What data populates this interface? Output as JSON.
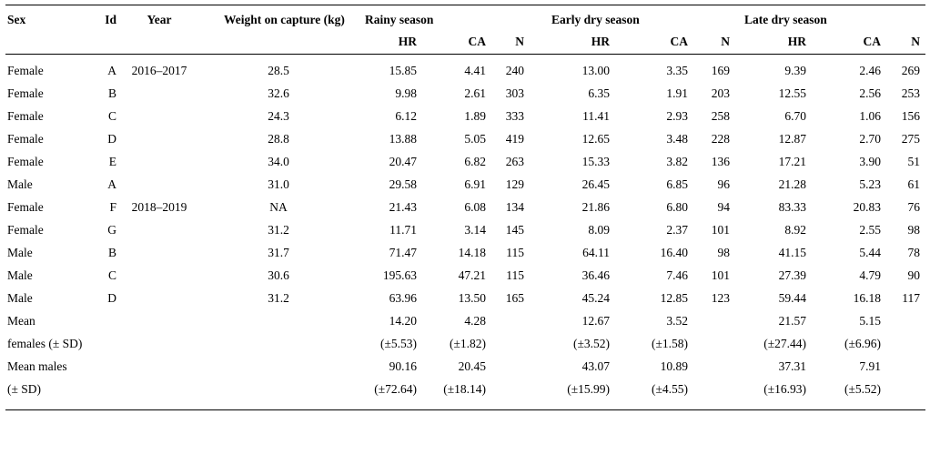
{
  "table": {
    "columns": {
      "sex": "Sex",
      "id": "Id",
      "year": "Year",
      "weight": "Weight on capture (kg)"
    },
    "groups": [
      "Rainy season",
      "Early dry season",
      "Late dry season"
    ],
    "subheaders": [
      "HR",
      "CA",
      "N"
    ],
    "rows": [
      [
        "Female",
        "A",
        "2016–2017",
        "28.5",
        "15.85",
        "4.41",
        "240",
        "13.00",
        "3.35",
        "169",
        "9.39",
        "2.46",
        "269"
      ],
      [
        "Female",
        "B",
        "",
        "32.6",
        "9.98",
        "2.61",
        "303",
        "6.35",
        "1.91",
        "203",
        "12.55",
        "2.56",
        "253"
      ],
      [
        "Female",
        "C",
        "",
        "24.3",
        "6.12",
        "1.89",
        "333",
        "11.41",
        "2.93",
        "258",
        "6.70",
        "1.06",
        "156"
      ],
      [
        "Female",
        "D",
        "",
        "28.8",
        "13.88",
        "5.05",
        "419",
        "12.65",
        "3.48",
        "228",
        "12.87",
        "2.70",
        "275"
      ],
      [
        "Female",
        "E",
        "",
        "34.0",
        "20.47",
        "6.82",
        "263",
        "15.33",
        "3.82",
        "136",
        "17.21",
        "3.90",
        "51"
      ],
      [
        "Male",
        "A",
        "",
        "31.0",
        "29.58",
        "6.91",
        "129",
        "26.45",
        "6.85",
        "96",
        "21.28",
        "5.23",
        "61"
      ],
      [
        "Female",
        "F",
        "2018–2019",
        "NA",
        "21.43",
        "6.08",
        "134",
        "21.86",
        "6.80",
        "94",
        "83.33",
        "20.83",
        "76"
      ],
      [
        "Female",
        "G",
        "",
        "31.2",
        "11.71",
        "3.14",
        "145",
        "8.09",
        "2.37",
        "101",
        "8.92",
        "2.55",
        "98"
      ],
      [
        "Male",
        "B",
        "",
        "31.7",
        "71.47",
        "14.18",
        "115",
        "64.11",
        "16.40",
        "98",
        "41.15",
        "5.44",
        "78"
      ],
      [
        "Male",
        "C",
        "",
        "30.6",
        "195.63",
        "47.21",
        "115",
        "36.46",
        "7.46",
        "101",
        "27.39",
        "4.79",
        "90"
      ],
      [
        "Male",
        "D",
        "",
        "31.2",
        "63.96",
        "13.50",
        "165",
        "45.24",
        "12.85",
        "123",
        "59.44",
        "16.18",
        "117"
      ],
      [
        "Mean",
        "",
        "",
        "",
        "14.20",
        "4.28",
        "",
        "12.67",
        "3.52",
        "",
        "21.57",
        "5.15",
        ""
      ],
      [
        "females (± SD)",
        "",
        "",
        "",
        "(±5.53)",
        "(±1.82)",
        "",
        "(±3.52)",
        "(±1.58)",
        "",
        "(±27.44)",
        "(±6.96)",
        ""
      ],
      [
        "Mean males",
        "",
        "",
        "",
        "90.16",
        "20.45",
        "",
        "43.07",
        "10.89",
        "",
        "37.31",
        "7.91",
        ""
      ],
      [
        "(± SD)",
        "",
        "",
        "",
        "(±72.64)",
        "(±18.14)",
        "",
        "(±15.99)",
        "(±4.55)",
        "",
        "(±16.93)",
        "(±5.52)",
        ""
      ]
    ]
  }
}
